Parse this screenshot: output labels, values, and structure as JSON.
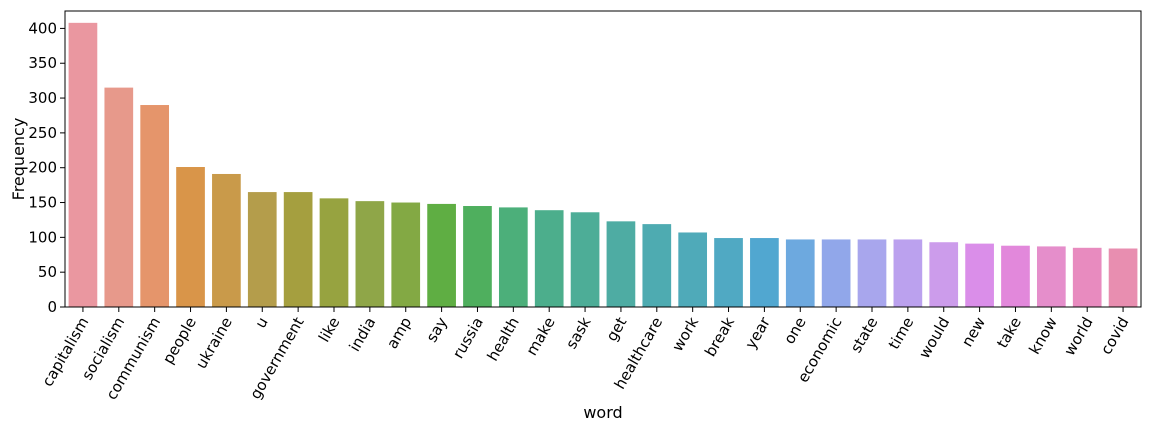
{
  "chart_data": {
    "type": "bar",
    "xlabel": "word",
    "ylabel": "Frequency",
    "ylim": [
      0,
      425
    ],
    "yticks": [
      0,
      50,
      100,
      150,
      200,
      250,
      300,
      350,
      400
    ],
    "grid": false,
    "categories": [
      "capitalism",
      "socialism",
      "communism",
      "people",
      "ukraine",
      "u",
      "government",
      "like",
      "india",
      "amp",
      "say",
      "russia",
      "health",
      "make",
      "sask",
      "get",
      "healthcare",
      "work",
      "break",
      "year",
      "one",
      "economic",
      "state",
      "time",
      "would",
      "new",
      "take",
      "know",
      "world",
      "covid"
    ],
    "values": [
      408,
      315,
      290,
      201,
      191,
      165,
      165,
      156,
      152,
      150,
      148,
      145,
      143,
      139,
      136,
      123,
      119,
      107,
      99,
      99,
      97,
      97,
      97,
      97,
      93,
      91,
      88,
      87,
      85,
      84
    ],
    "colors": [
      "#ea97a0",
      "#e7998b",
      "#e5956b",
      "#d99549",
      "#c99a4a",
      "#b49d4b",
      "#a59f3f",
      "#97a340",
      "#8fa648",
      "#83a944",
      "#5fae43",
      "#4faf5e",
      "#4caf7a",
      "#4cae8c",
      "#4dad97",
      "#4eaca3",
      "#4eabb1",
      "#4faab9",
      "#50a9c3",
      "#51a7d0",
      "#6da9df",
      "#91a7ea",
      "#a8a6ed",
      "#bba1ee",
      "#cc9ceb",
      "#da8ee9",
      "#e288db",
      "#e58ecb",
      "#e88bbf",
      "#e88eb0"
    ]
  }
}
